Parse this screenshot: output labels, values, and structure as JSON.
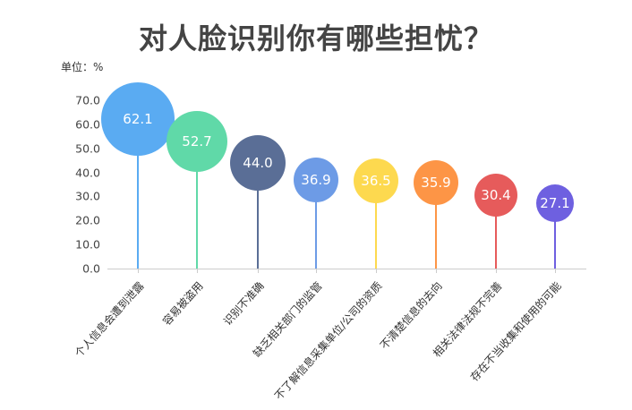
{
  "header": {
    "title": "对人脸识别你有哪些担忧？",
    "unit_label": "单位：%"
  },
  "chart_data": {
    "type": "bubble-lollipop",
    "title": "对人脸识别你有哪些担忧？",
    "ylabel": "单位：%",
    "xlabel": "",
    "ylim": [
      0,
      70
    ],
    "grid": false,
    "y_ticks": [
      "0.0",
      "10.0",
      "20.0",
      "30.0",
      "40.0",
      "50.0",
      "60.0",
      "70.0"
    ],
    "categories": [
      "个人信息会遭到泄露",
      "容易被盗用",
      "识别不准确",
      "缺乏相关部门的监管",
      "不了解信息采集单位/公司的资质",
      "不清楚信息的去向",
      "相关法律法规不完善",
      "存在不当收集和使用的可能"
    ],
    "values": [
      62.1,
      52.7,
      44.0,
      36.9,
      36.5,
      35.9,
      30.4,
      27.1
    ],
    "value_labels": [
      "62.1",
      "52.7",
      "44.0",
      "36.9",
      "36.5",
      "35.9",
      "30.4",
      "27.1"
    ],
    "colors": [
      "#5aabf2",
      "#60d9a8",
      "#5a6e96",
      "#6d9be6",
      "#fdd94f",
      "#fd9546",
      "#e65b5b",
      "#6e60e0"
    ]
  }
}
